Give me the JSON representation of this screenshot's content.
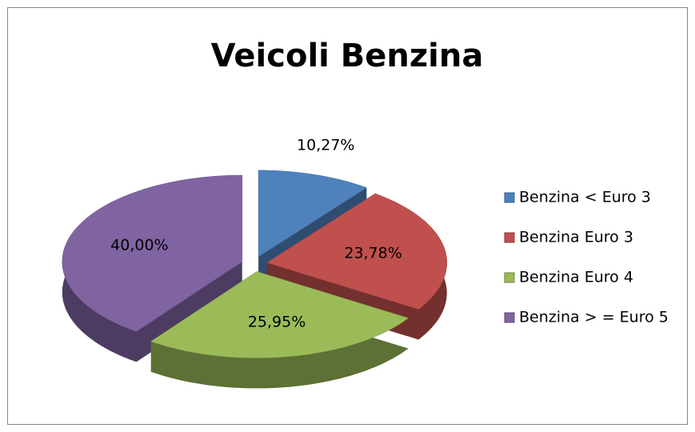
{
  "chart_data": {
    "type": "pie",
    "title": "Veicoli Benzina",
    "categories": [
      "Benzina < Euro 3",
      "Benzina Euro 3",
      "Benzina Euro 4",
      "Benzina > = Euro 5"
    ],
    "values": [
      10.27,
      23.78,
      25.95,
      40.0
    ],
    "value_labels": [
      "10,27%",
      "23,78%",
      "25,95%",
      "40,00%"
    ],
    "colors": [
      "#4f81bd",
      "#c0504d",
      "#9bbb59",
      "#8064a2"
    ],
    "legend": "right"
  }
}
